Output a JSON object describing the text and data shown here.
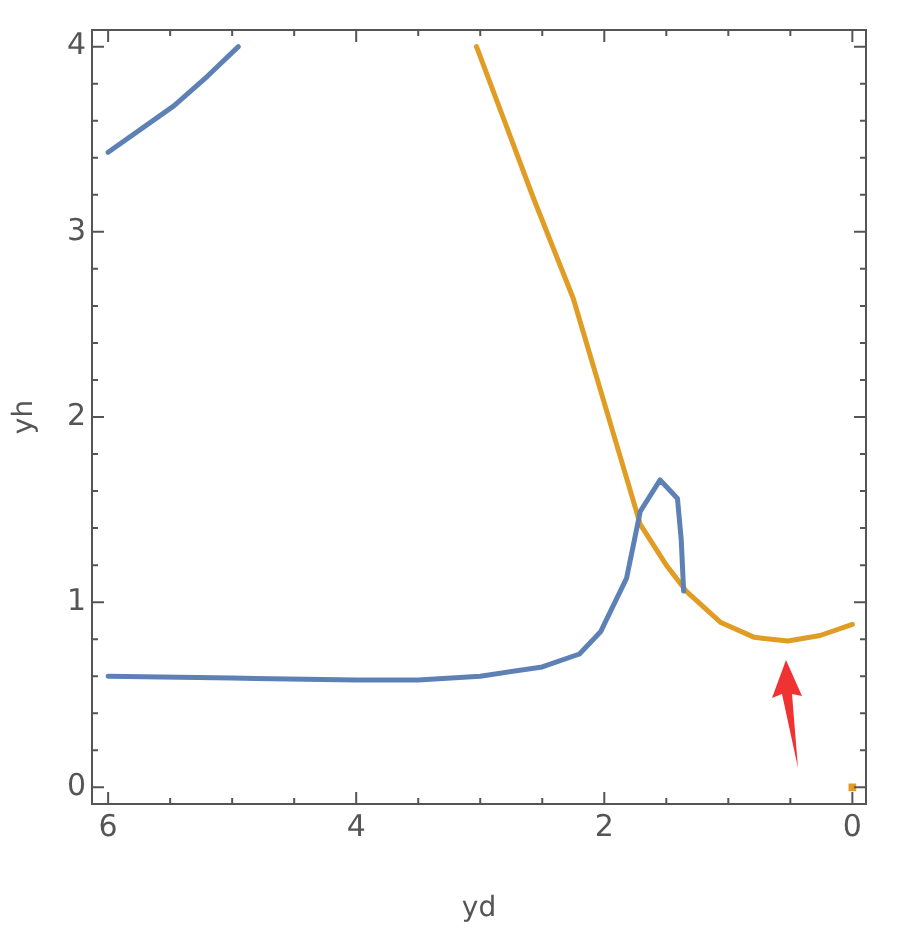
{
  "chart_data": {
    "type": "line",
    "xlabel": "yd",
    "ylabel": "yh",
    "xlim": [
      6.13,
      -0.11
    ],
    "ylim": [
      -0.09,
      4.09
    ],
    "xticks": [
      0,
      {
        "value": 0.5,
        "label": null
      },
      {
        "value": 1,
        "label": null
      },
      {
        "value": 1.5,
        "label": null
      },
      2,
      {
        "value": 2.5,
        "label": null
      },
      {
        "value": 3,
        "label": null
      },
      {
        "value": 3.5,
        "label": null
      },
      4,
      {
        "value": 4.5,
        "label": null
      },
      {
        "value": 5,
        "label": null
      },
      {
        "value": 5.5,
        "label": null
      },
      6
    ],
    "yticks": [
      0,
      {
        "value": 0.2,
        "label": null
      },
      {
        "value": 0.4,
        "label": null
      },
      {
        "value": 0.6,
        "label": null
      },
      {
        "value": 0.8,
        "label": null
      },
      1,
      {
        "value": 1.2,
        "label": null
      },
      {
        "value": 1.4,
        "label": null
      },
      {
        "value": 1.6,
        "label": null
      },
      {
        "value": 1.8,
        "label": null
      },
      2,
      {
        "value": 2.2,
        "label": null
      },
      {
        "value": 2.4,
        "label": null
      },
      {
        "value": 2.6,
        "label": null
      },
      {
        "value": 2.8,
        "label": null
      },
      3,
      {
        "value": 3.2,
        "label": null
      },
      {
        "value": 3.4,
        "label": null
      },
      {
        "value": 3.6,
        "label": null
      },
      {
        "value": 3.8,
        "label": null
      },
      4
    ],
    "grid": false,
    "legend": false,
    "marker": "none",
    "line_style": "solid",
    "series": [
      {
        "color": "#5e81b5",
        "x": [
          6,
          5.47,
          5.2,
          4.95
        ],
        "values": [
          3.43,
          3.68,
          3.84,
          4.0
        ]
      },
      {
        "color": "#5e81b5",
        "x": [
          6,
          5,
          4,
          3.5,
          3,
          2.5,
          2.2,
          2.03,
          1.82,
          1.71,
          1.55,
          1.41,
          1.38,
          1.36
        ],
        "values": [
          0.6,
          0.59,
          0.58,
          0.58,
          0.6,
          0.65,
          0.72,
          0.84,
          1.13,
          1.49,
          1.66,
          1.56,
          1.34,
          1.06
        ]
      },
      {
        "color": "#e19c24",
        "x": [
          3.03,
          2.57,
          2.25,
          1.82,
          1.71,
          1.5,
          1.34,
          1.06,
          0.79,
          0.52,
          0.26,
          0
        ],
        "values": [
          4.0,
          3.18,
          2.64,
          1.67,
          1.42,
          1.2,
          1.06,
          0.89,
          0.81,
          0.79,
          0.82,
          0.88
        ]
      },
      {
        "type": "scatter",
        "marker": "square",
        "color": "#e19c24",
        "x": [
          0
        ],
        "values": [
          0
        ]
      }
    ]
  }
}
